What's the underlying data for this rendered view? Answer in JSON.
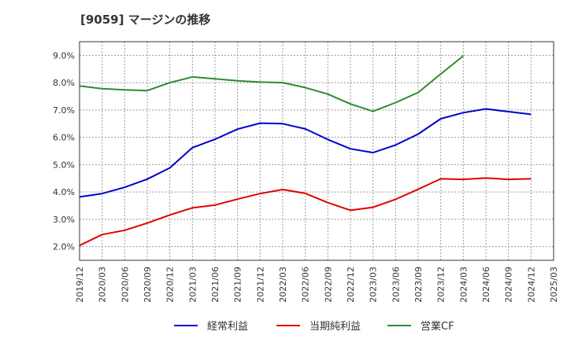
{
  "chart_data": {
    "type": "line",
    "title": "[9059]  マージンの推移",
    "xlabel": "",
    "ylabel": "",
    "ylim": [
      1.5,
      9.5
    ],
    "y_ticks": [
      "2.0%",
      "3.0%",
      "4.0%",
      "5.0%",
      "6.0%",
      "7.0%",
      "8.0%",
      "9.0%"
    ],
    "y_tick_values": [
      2.0,
      3.0,
      4.0,
      5.0,
      6.0,
      7.0,
      8.0,
      9.0
    ],
    "categories": [
      "2019/12",
      "2020/03",
      "2020/06",
      "2020/09",
      "2020/12",
      "2021/03",
      "2021/06",
      "2021/09",
      "2021/12",
      "2022/03",
      "2022/06",
      "2022/09",
      "2022/12",
      "2023/03",
      "2023/06",
      "2023/09",
      "2023/12",
      "2024/03",
      "2024/06",
      "2024/09",
      "2024/12",
      "2025/03"
    ],
    "grid": true,
    "legend_position": "bottom",
    "series": [
      {
        "name": "経常利益",
        "color": "#0000cc",
        "values": [
          3.82,
          3.94,
          4.17,
          4.47,
          4.88,
          5.62,
          5.93,
          6.3,
          6.52,
          6.5,
          6.31,
          5.92,
          5.58,
          5.44,
          5.72,
          6.12,
          6.68,
          6.9,
          7.04,
          6.94,
          6.84,
          null
        ]
      },
      {
        "name": "当期純利益",
        "color": "#e00000",
        "values": [
          2.04,
          2.44,
          2.6,
          2.86,
          3.16,
          3.42,
          3.52,
          3.74,
          3.94,
          4.09,
          3.95,
          3.61,
          3.33,
          3.44,
          3.73,
          4.1,
          4.48,
          4.46,
          4.51,
          4.46,
          4.48,
          null
        ]
      },
      {
        "name": "営業CF",
        "color": "#2e8b2e",
        "values": [
          7.88,
          7.78,
          7.74,
          7.71,
          8.0,
          8.21,
          8.14,
          8.07,
          8.02,
          8.0,
          7.82,
          7.58,
          7.22,
          6.95,
          7.27,
          7.64,
          8.32,
          8.98,
          null,
          null,
          null,
          null
        ]
      }
    ]
  }
}
